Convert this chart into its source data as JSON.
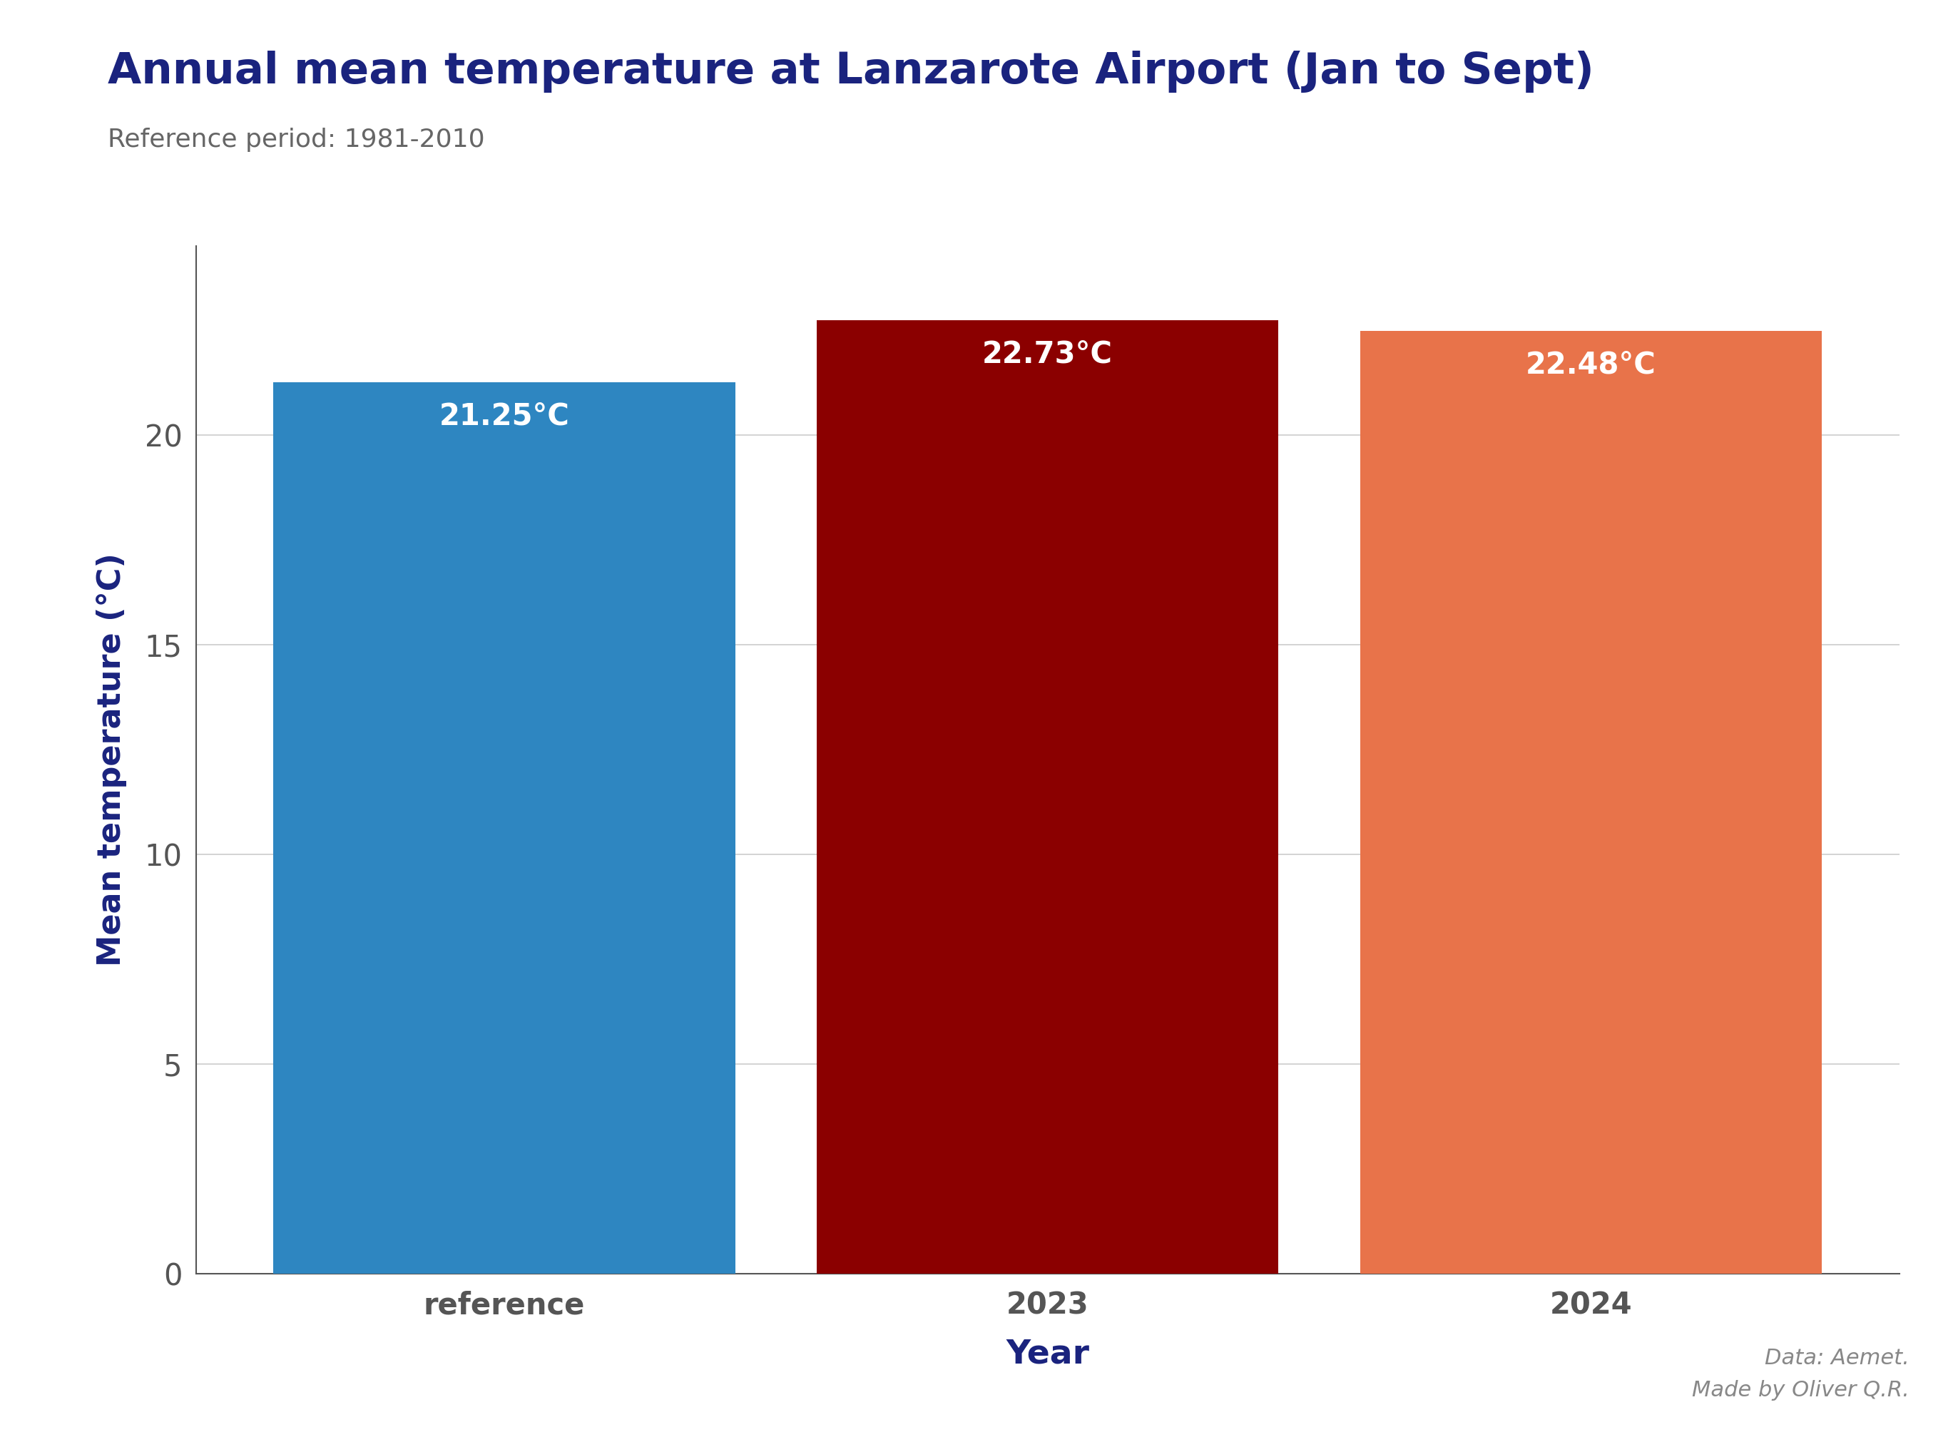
{
  "title": "Annual mean temperature at Lanzarote Airport (Jan to Sept)",
  "subtitle": "Reference period: 1981-2010",
  "categories": [
    "reference",
    "2023",
    "2024"
  ],
  "values": [
    21.25,
    22.73,
    22.48
  ],
  "bar_colors": [
    "#2E86C1",
    "#8B0000",
    "#E8734A"
  ],
  "bar_labels": [
    "21.25°C",
    "22.73°C",
    "22.48°C"
  ],
  "xlabel": "Year",
  "ylabel": "Mean temperature (°C)",
  "ylim": [
    0,
    24.5
  ],
  "yticks": [
    0,
    5,
    10,
    15,
    20
  ],
  "title_color": "#1A237E",
  "subtitle_color": "#666666",
  "xlabel_color": "#1A237E",
  "ylabel_color": "#1A237E",
  "label_color": "#FFFFFF",
  "annotation_color": "#888888",
  "annotation_text": "Data: Aemet.\nMade by Oliver Q.R.",
  "background_color": "#FFFFFF",
  "grid_color": "#CCCCCC",
  "tick_color": "#555555",
  "spine_color": "#555555",
  "bar_width": 0.85,
  "title_fontsize": 44,
  "subtitle_fontsize": 26,
  "xlabel_fontsize": 34,
  "ylabel_fontsize": 32,
  "tick_fontsize": 30,
  "label_fontsize": 30
}
